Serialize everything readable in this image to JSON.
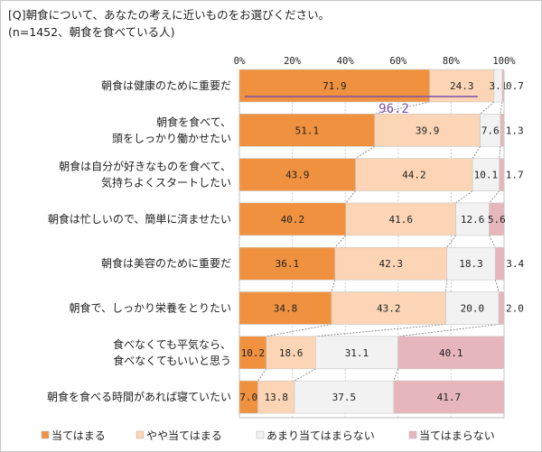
{
  "chart_data": {
    "type": "bar",
    "stacked": true,
    "orientation": "horizontal",
    "title": "[Q]朝食について、あなたの考えに近いものをお選びください。",
    "subtitle": "(n=1452、朝食を食べている人)",
    "xlim": [
      0,
      100
    ],
    "xticks": [
      "0%",
      "20%",
      "40%",
      "60%",
      "80%",
      "100%"
    ],
    "grid": true,
    "legend_position": "bottom",
    "categories": [
      [
        "朝食は健康のために重要だ"
      ],
      [
        "朝食を食べて、",
        "頭をしっかり働かせたい"
      ],
      [
        "朝食は自分が好きなものを食べて、",
        "気持ちよくスタートしたい"
      ],
      [
        "朝食は忙しいので、簡単に済ませたい"
      ],
      [
        "朝食は美容のために重要だ"
      ],
      [
        "朝食で、しっかり栄養をとりたい"
      ],
      [
        "食べなくても平気なら、",
        "食べなくてもいいと思う"
      ],
      [
        "朝食を食べる時間があれば寝ていたい"
      ]
    ],
    "series": [
      {
        "name": "当てはまる",
        "color": "#F0913F",
        "values": [
          71.9,
          51.1,
          43.9,
          40.2,
          36.1,
          34.8,
          10.2,
          7.0
        ]
      },
      {
        "name": "やや当てはまる",
        "color": "#FBD5B5",
        "values": [
          24.3,
          39.9,
          44.2,
          41.6,
          42.3,
          43.2,
          18.6,
          13.8
        ]
      },
      {
        "name": "あまり当てはまらない",
        "color": "#F2F2F2",
        "values": [
          3.1,
          7.6,
          10.1,
          12.6,
          18.3,
          20.0,
          31.1,
          37.5
        ]
      },
      {
        "name": "当てはまらない",
        "color": "#E6B6BC",
        "values": [
          0.7,
          1.3,
          1.7,
          5.6,
          3.4,
          2.0,
          40.1,
          41.7
        ]
      }
    ],
    "annotations": [
      {
        "text": "96.2",
        "row": 0,
        "color": "#7B4FA6"
      }
    ]
  }
}
